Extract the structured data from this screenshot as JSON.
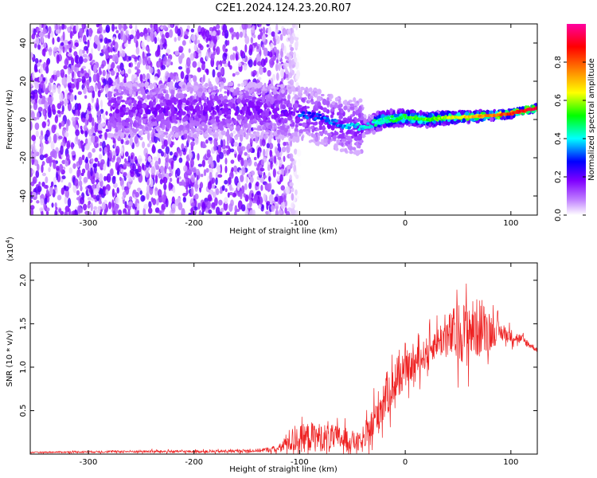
{
  "title": "C2E1.2024.124.23.20.R07",
  "chart_data": [
    {
      "type": "heatmap",
      "xlabel": "Height of straight line (km)",
      "ylabel": "Frequency (Hz)",
      "xlim": [
        -355,
        125
      ],
      "ylim": [
        -50,
        50
      ],
      "xticks": [
        -300,
        -200,
        -100,
        0,
        100
      ],
      "yticks": [
        -40,
        -20,
        0,
        20,
        40
      ],
      "colorbar": {
        "label": "Normalized spectral amplitude",
        "range": [
          0,
          1
        ],
        "ticks": [
          "0.0",
          "0.2",
          "0.4",
          "0.6",
          "0.8"
        ],
        "colormap": [
          "#ffffff",
          "#8000ff",
          "#0000ff",
          "#00ffff",
          "#00ff00",
          "#ffff00",
          "#ff8000",
          "#ff0000",
          "#ff00ff"
        ]
      },
      "ridge": [
        {
          "x": -140,
          "f": 5,
          "amp": 0.15
        },
        {
          "x": -120,
          "f": 4,
          "amp": 0.25
        },
        {
          "x": -100,
          "f": 3,
          "amp": 0.3
        },
        {
          "x": -80,
          "f": 1,
          "amp": 0.3
        },
        {
          "x": -60,
          "f": -3,
          "amp": 0.35
        },
        {
          "x": -40,
          "f": -4,
          "amp": 0.4
        },
        {
          "x": -20,
          "f": 0,
          "amp": 0.45
        },
        {
          "x": 0,
          "f": 1,
          "amp": 0.5
        },
        {
          "x": 20,
          "f": 0,
          "amp": 0.55
        },
        {
          "x": 40,
          "f": 1,
          "amp": 0.6
        },
        {
          "x": 60,
          "f": 1.5,
          "amp": 0.7
        },
        {
          "x": 80,
          "f": 2,
          "amp": 0.75
        },
        {
          "x": 100,
          "f": 3,
          "amp": 0.85
        },
        {
          "x": 115,
          "f": 5,
          "amp": 0.9
        },
        {
          "x": 125,
          "f": 6,
          "amp": 0.9
        }
      ],
      "noise_region": {
        "x_from": -355,
        "x_to": -120,
        "f_from": -50,
        "f_to": 50,
        "amp": 0.1
      }
    },
    {
      "type": "line",
      "xlabel": "Height of straight line (km)",
      "ylabel": "SNR (10 * v/v)",
      "yscale_label": "(x10",
      "yscale_exp": "4",
      "yscale_close": ")",
      "xlim": [
        -355,
        125
      ],
      "ylim": [
        0,
        22000
      ],
      "xticks": [
        -300,
        -200,
        -100,
        0,
        100
      ],
      "yticks": [
        5000,
        10000,
        15000,
        20000
      ],
      "ytick_labels": [
        "0.5",
        "1.0",
        "1.5",
        "2.0"
      ],
      "color": "#ee2222",
      "envelope": [
        {
          "x": -355,
          "base": 200,
          "amp": 100
        },
        {
          "x": -260,
          "base": 300,
          "amp": 200
        },
        {
          "x": -180,
          "base": 300,
          "amp": 200
        },
        {
          "x": -140,
          "base": 400,
          "amp": 300
        },
        {
          "x": -120,
          "base": 600,
          "amp": 500
        },
        {
          "x": -110,
          "base": 1500,
          "amp": 2000
        },
        {
          "x": -90,
          "base": 2000,
          "amp": 2500
        },
        {
          "x": -60,
          "base": 1800,
          "amp": 2000
        },
        {
          "x": -40,
          "base": 1200,
          "amp": 1500
        },
        {
          "x": -30,
          "base": 3500,
          "amp": 3500
        },
        {
          "x": -20,
          "base": 6500,
          "amp": 4000
        },
        {
          "x": -10,
          "base": 8000,
          "amp": 3000
        },
        {
          "x": 0,
          "base": 9500,
          "amp": 2500
        },
        {
          "x": 15,
          "base": 11000,
          "amp": 2500
        },
        {
          "x": 30,
          "base": 13000,
          "amp": 2500
        },
        {
          "x": 50,
          "base": 14000,
          "amp": 5000
        },
        {
          "x": 70,
          "base": 14500,
          "amp": 5000
        },
        {
          "x": 90,
          "base": 14000,
          "amp": 1500
        },
        {
          "x": 110,
          "base": 13200,
          "amp": 800
        },
        {
          "x": 125,
          "base": 12000,
          "amp": 400
        }
      ]
    }
  ]
}
